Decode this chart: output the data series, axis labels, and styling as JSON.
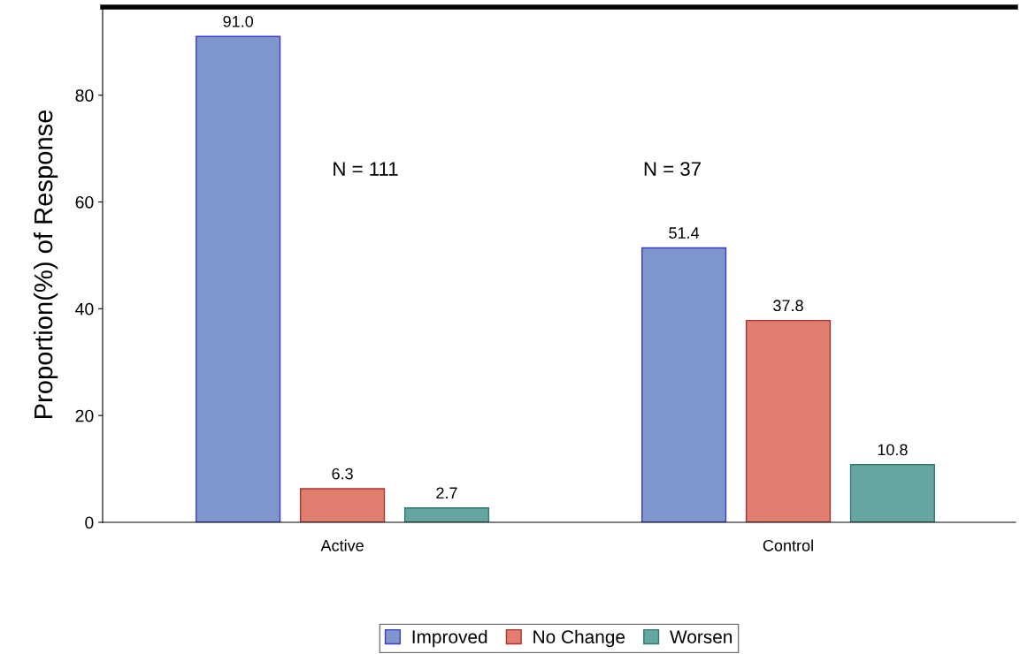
{
  "chart_data": {
    "type": "bar",
    "ylabel": "Proportion(%) of Response",
    "categories": [
      "Active",
      "Control"
    ],
    "series": [
      {
        "name": "Improved",
        "color": "#7f96cd",
        "values": [
          91.0,
          51.4
        ],
        "value_labels": [
          "91.0",
          "51.4"
        ]
      },
      {
        "name": "No Change",
        "color": "#e07f6f",
        "values": [
          6.3,
          37.8
        ],
        "value_labels": [
          "6.3",
          "37.8"
        ]
      },
      {
        "name": "Worsen",
        "color": "#66a6a0",
        "values": [
          2.7,
          10.8
        ],
        "value_labels": [
          "2.7",
          "10.8"
        ]
      }
    ],
    "ylim": [
      0,
      96.5
    ],
    "yticks": [
      0,
      20,
      40,
      60,
      80
    ],
    "legend": "bottom",
    "grid": false,
    "annotations": [
      "N = 111",
      "N = 37"
    ]
  }
}
